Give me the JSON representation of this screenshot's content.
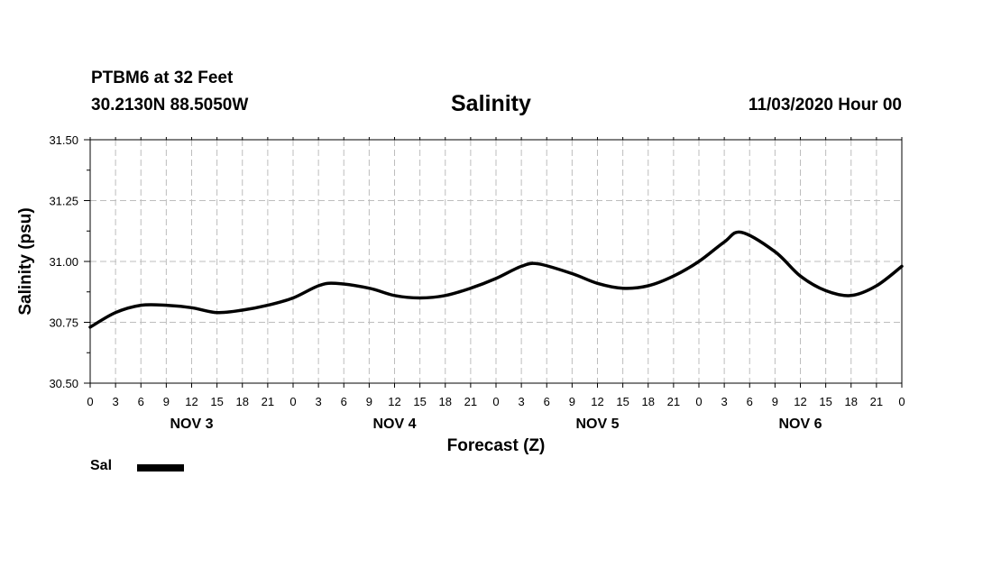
{
  "header": {
    "station": "PTBM6 at 32 Feet",
    "coords": "30.2130N 88.5050W",
    "date": "11/03/2020 Hour 00"
  },
  "chart_data": {
    "type": "line",
    "title": "Salinity",
    "xlabel": "Forecast (Z)",
    "ylabel": "Salinity (psu)",
    "ylim": [
      30.5,
      31.5
    ],
    "yticks": [
      "30.50",
      "30.75",
      "31.00",
      "31.25",
      "31.50"
    ],
    "xlim": [
      0,
      96
    ],
    "xtick_labels": [
      "0",
      "3",
      "6",
      "9",
      "12",
      "15",
      "18",
      "21",
      "0",
      "3",
      "6",
      "9",
      "12",
      "15",
      "18",
      "21",
      "0",
      "3",
      "6",
      "9",
      "12",
      "15",
      "18",
      "21",
      "0",
      "3",
      "6",
      "9",
      "12",
      "15",
      "18",
      "21",
      "0"
    ],
    "day_labels": [
      "NOV 3",
      "NOV 4",
      "NOV 5",
      "NOV 6"
    ],
    "grid": true,
    "legend_position": "bottom-left",
    "series": [
      {
        "name": "Sal",
        "color": "#000000",
        "x": [
          0,
          3,
          6,
          9,
          12,
          15,
          18,
          21,
          24,
          27,
          29,
          33,
          36,
          39,
          42,
          45,
          48,
          51,
          53,
          57,
          60,
          63,
          66,
          69,
          72,
          75,
          77,
          81,
          84,
          87,
          90,
          93,
          96
        ],
        "values": [
          30.73,
          30.79,
          30.82,
          30.82,
          30.81,
          30.79,
          30.8,
          30.82,
          30.85,
          30.9,
          30.91,
          30.89,
          30.86,
          30.85,
          30.86,
          30.89,
          30.93,
          30.98,
          30.99,
          30.95,
          30.91,
          30.89,
          30.9,
          30.94,
          31.0,
          31.08,
          31.12,
          31.04,
          30.94,
          30.88,
          30.86,
          30.9,
          30.98
        ]
      }
    ]
  }
}
